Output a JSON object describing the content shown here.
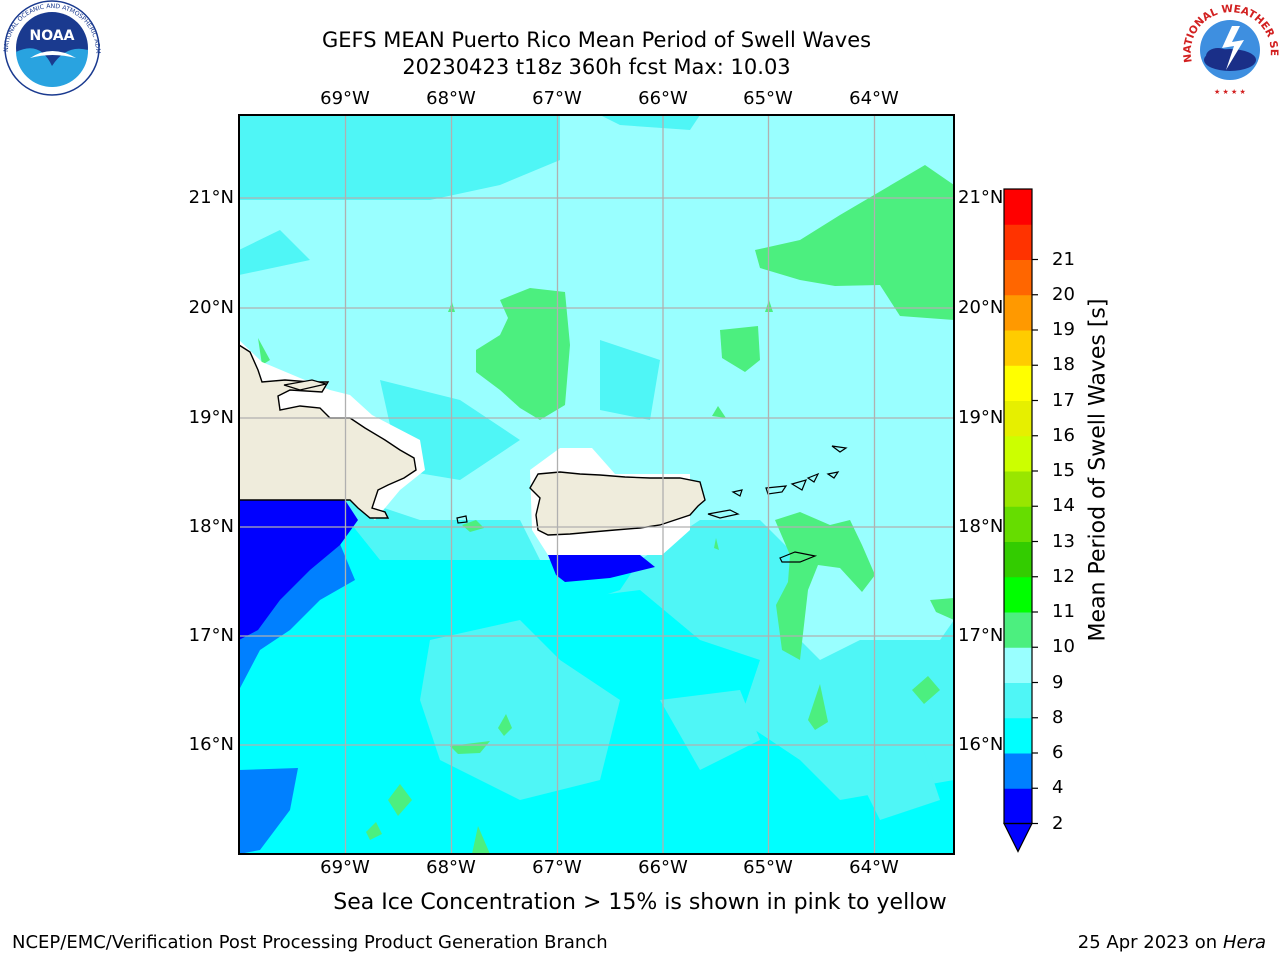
{
  "header": {
    "title_line1": "GEFS MEAN Puerto Rico Mean Period of Swell Waves",
    "title_line2": "20230423 t18z 360h fcst   Max: 10.03"
  },
  "map": {
    "lon_labels": [
      "69°W",
      "68°W",
      "67°W",
      "66°W",
      "65°W",
      "64°W"
    ],
    "lat_labels": [
      "21°N",
      "20°N",
      "19°N",
      "18°N",
      "17°N",
      "16°N"
    ],
    "lon_extent": [
      -70.0,
      -63.25
    ],
    "lat_extent": [
      15.0,
      21.75
    ],
    "background_level_color": "#99ffff"
  },
  "colorbar": {
    "label": "Mean Period of Swell Waves [s]",
    "ticks": [
      "2",
      "4",
      "6",
      "8",
      "9",
      "10",
      "11",
      "12",
      "13",
      "14",
      "15",
      "16",
      "17",
      "18",
      "19",
      "20",
      "21"
    ],
    "colors": [
      "#0000ff",
      "#0080ff",
      "#00ffff",
      "#4ff6f6",
      "#99ffff",
      "#4cef7f",
      "#00ff00",
      "#33cc00",
      "#66dd00",
      "#99e600",
      "#ccff00",
      "#e6ef00",
      "#ffff00",
      "#ffcc00",
      "#ff9900",
      "#ff6600",
      "#ff3300",
      "#ff0000"
    ],
    "under_color": "#0000ff"
  },
  "footer": {
    "note": "Sea Ice Concentration > 15% is shown in pink to yellow",
    "credit_left": "NCEP/EMC/Verification Post Processing Product Generation Branch",
    "credit_right_date": "25 Apr 2023 on ",
    "credit_right_host": "Hera"
  },
  "logos": {
    "noaa_text": "NOAA",
    "noaa_ring": "NATIONAL OCEANIC AND ATMOSPHERIC ADMINISTRATION · U.S. DEPARTMENT OF COMMERCE",
    "nws_ring": "NATIONAL WEATHER SERVICE"
  }
}
